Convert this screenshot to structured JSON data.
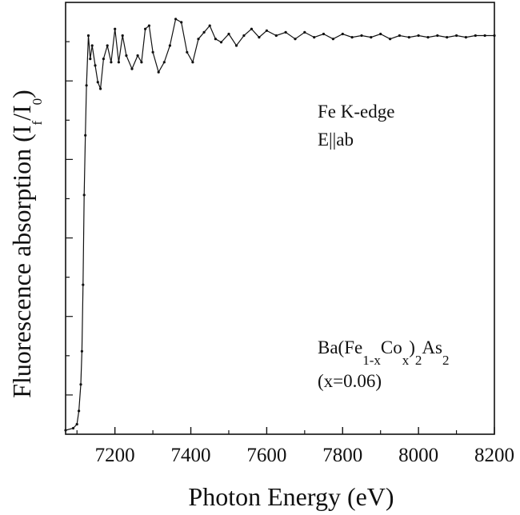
{
  "chart_data": {
    "type": "line",
    "xlabel": "Photon Energy (eV)",
    "ylabel": {
      "main": "Fluorescence absorption (I",
      "sub1": "f",
      "mid": "/I",
      "sub2": "0",
      "close": ")"
    },
    "xlim": [
      7070,
      8200
    ],
    "ylim": [
      0,
      1.3
    ],
    "x_ticks": [
      7200,
      7400,
      7600,
      7800,
      8000,
      8200
    ],
    "x_tick_labels": [
      "7200",
      "7400",
      "7600",
      "7800",
      "8000",
      "8200"
    ],
    "y_tick_labels_shown": false,
    "grid": false,
    "legend": "none",
    "annotations": {
      "edge_line1": "Fe K-edge",
      "edge_line2": "E||ab",
      "formula": {
        "a": "Ba(Fe",
        "s1": "1-x",
        "b": "Co",
        "s2": "x",
        "c": ")",
        "s3": "2",
        "d": "As",
        "s4": "2"
      },
      "composition": "(x=0.06)"
    },
    "marker": "small dot",
    "color": "#111111",
    "series": [
      {
        "x": [
          7070,
          7090,
          7100,
          7105,
          7110,
          7113,
          7116,
          7119,
          7122,
          7125,
          7130,
          7135,
          7140,
          7148,
          7155,
          7162,
          7170,
          7180,
          7190,
          7200,
          7210,
          7220,
          7230,
          7245,
          7260,
          7270,
          7280,
          7290,
          7300,
          7315,
          7330,
          7345,
          7360,
          7375,
          7390,
          7405,
          7420,
          7435,
          7450,
          7465,
          7480,
          7500,
          7520,
          7540,
          7560,
          7580,
          7600,
          7625,
          7650,
          7675,
          7700,
          7725,
          7750,
          7775,
          7800,
          7825,
          7850,
          7875,
          7900,
          7925,
          7950,
          7975,
          8000,
          8025,
          8050,
          8075,
          8100,
          8125,
          8150,
          8175,
          8200
        ],
        "y": [
          0.012,
          0.018,
          0.03,
          0.07,
          0.15,
          0.25,
          0.45,
          0.72,
          0.9,
          1.05,
          1.2,
          1.13,
          1.17,
          1.11,
          1.06,
          1.04,
          1.13,
          1.17,
          1.12,
          1.22,
          1.12,
          1.2,
          1.14,
          1.1,
          1.14,
          1.12,
          1.22,
          1.23,
          1.15,
          1.09,
          1.12,
          1.17,
          1.25,
          1.24,
          1.15,
          1.12,
          1.19,
          1.21,
          1.23,
          1.19,
          1.18,
          1.205,
          1.17,
          1.2,
          1.22,
          1.195,
          1.215,
          1.2,
          1.21,
          1.19,
          1.21,
          1.195,
          1.205,
          1.19,
          1.205,
          1.195,
          1.2,
          1.195,
          1.205,
          1.19,
          1.2,
          1.195,
          1.2,
          1.195,
          1.2,
          1.195,
          1.2,
          1.195,
          1.2,
          1.2,
          1.2
        ]
      }
    ]
  }
}
